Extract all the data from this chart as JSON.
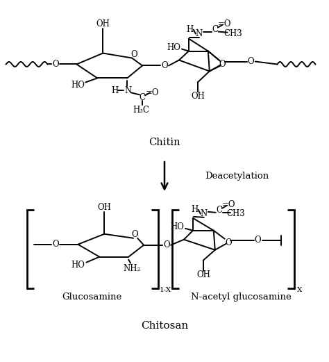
{
  "bg_color": "#ffffff",
  "chitin_label": "Chitin",
  "chitosan_label": "Chitosan",
  "reaction_label": "Deacetylation",
  "glucosamine_label": "Glucosamine",
  "nacetyl_label": "N-acetyl glucosamine"
}
